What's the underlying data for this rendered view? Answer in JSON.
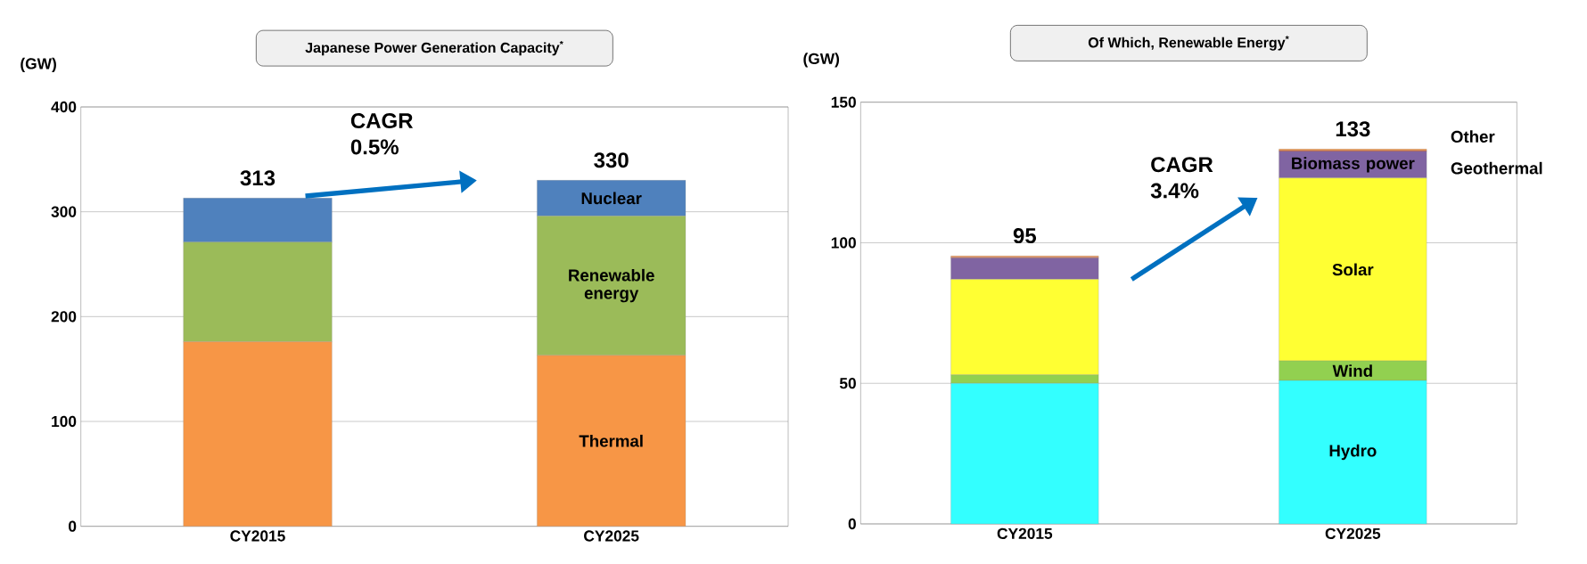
{
  "chart_data": [
    {
      "type": "bar",
      "title": "Japanese Power Generation Capacity$^{*}$",
      "ylabel": "(GW)",
      "categories": [
        "CY2015",
        "CY2025"
      ],
      "stacked": true,
      "ylim": [
        0,
        400
      ],
      "yticks": [
        0,
        100,
        200,
        300,
        400
      ],
      "grid": "y",
      "totals": [
        "313",
        "330"
      ],
      "annotations": [
        "CAGR 0.5%"
      ],
      "series": [
        {
          "name": "Thermal",
          "color": "#f79646",
          "values": [
            176,
            163
          ]
        },
        {
          "name": "Renewable energy",
          "color": "#9bbb59",
          "values": [
            95,
            133
          ]
        },
        {
          "name": "Nuclear",
          "color": "#4f81bd",
          "values": [
            42,
            34
          ]
        }
      ]
    },
    {
      "type": "bar",
      "title": "Of Which, Renewable Energy$^{*}$",
      "ylabel": "(GW)",
      "categories": [
        "CY2015",
        "CY2025"
      ],
      "stacked": true,
      "ylim": [
        0,
        150
      ],
      "yticks": [
        0,
        50,
        100,
        150
      ],
      "grid": "y",
      "totals": [
        "95",
        "133"
      ],
      "annotations": [
        "CAGR 3.4%"
      ],
      "series": [
        {
          "name": "Hydro",
          "color": "#33ffff",
          "values": [
            50,
            51
          ]
        },
        {
          "name": "Wind",
          "color": "#92d050",
          "values": [
            3,
            7
          ]
        },
        {
          "name": "Solar",
          "color": "#ffff33",
          "values": [
            34,
            65
          ]
        },
        {
          "name": "Biomass power",
          "color": "#8064a2",
          "values": [
            7.5,
            9.5
          ]
        },
        {
          "name": "Geothermal",
          "color": "#c0504d",
          "values": [
            0.3,
            0.3
          ]
        },
        {
          "name": "Other",
          "color": "#f79646",
          "values": [
            0.5,
            0.5
          ]
        }
      ]
    }
  ]
}
